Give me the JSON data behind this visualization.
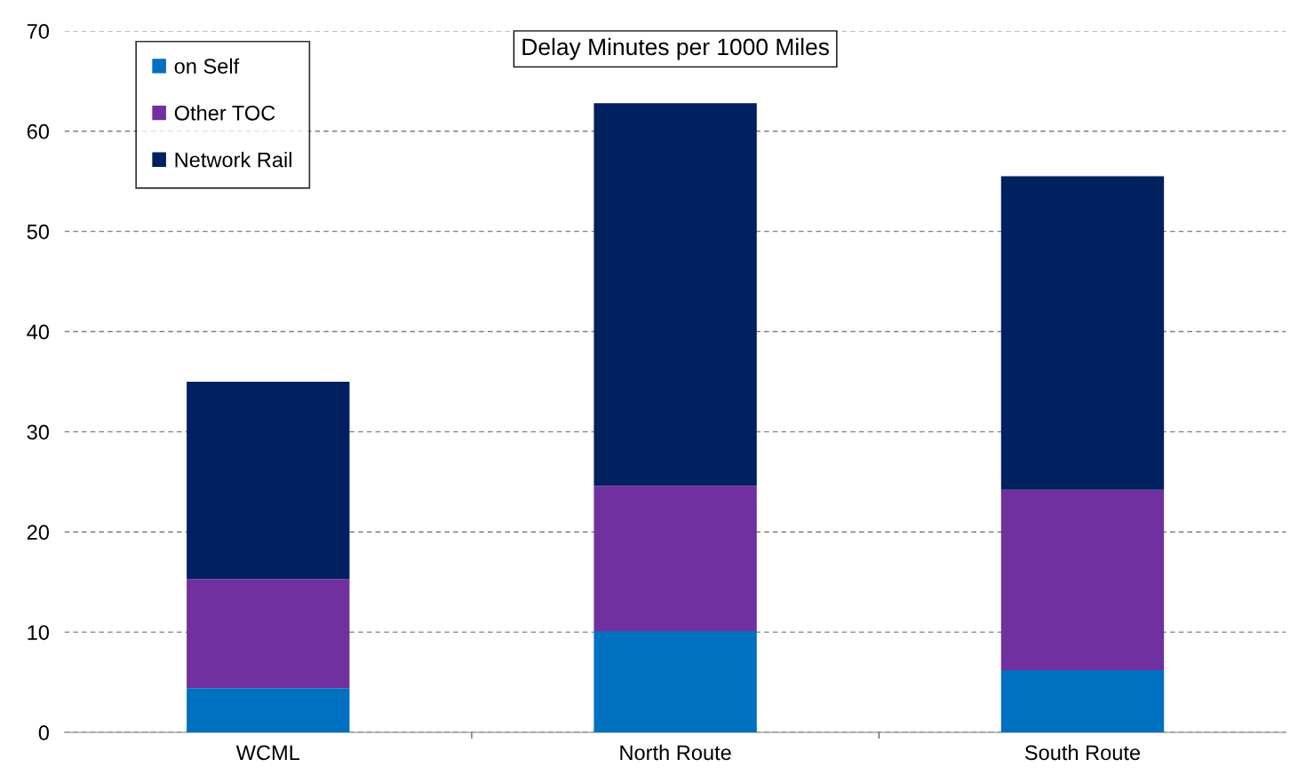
{
  "chart_data": {
    "type": "bar",
    "title": "Delay Minutes per 1000 Miles",
    "categories": [
      "WCML",
      "North Route",
      "South Route"
    ],
    "stacked": true,
    "series": [
      {
        "name": "on Self",
        "color": "#0070c0",
        "values": [
          4.4,
          10.1,
          6.2
        ]
      },
      {
        "name": "Other TOC",
        "color": "#7030a0",
        "values": [
          10.9,
          14.5,
          18.0
        ]
      },
      {
        "name": "Network Rail",
        "color": "#002060",
        "values": [
          19.7,
          38.2,
          31.3
        ]
      }
    ],
    "ylim": [
      0,
      70
    ],
    "yticks": [
      0,
      10,
      20,
      30,
      40,
      50,
      60,
      70
    ],
    "grid": "y",
    "legend": "top left"
  }
}
